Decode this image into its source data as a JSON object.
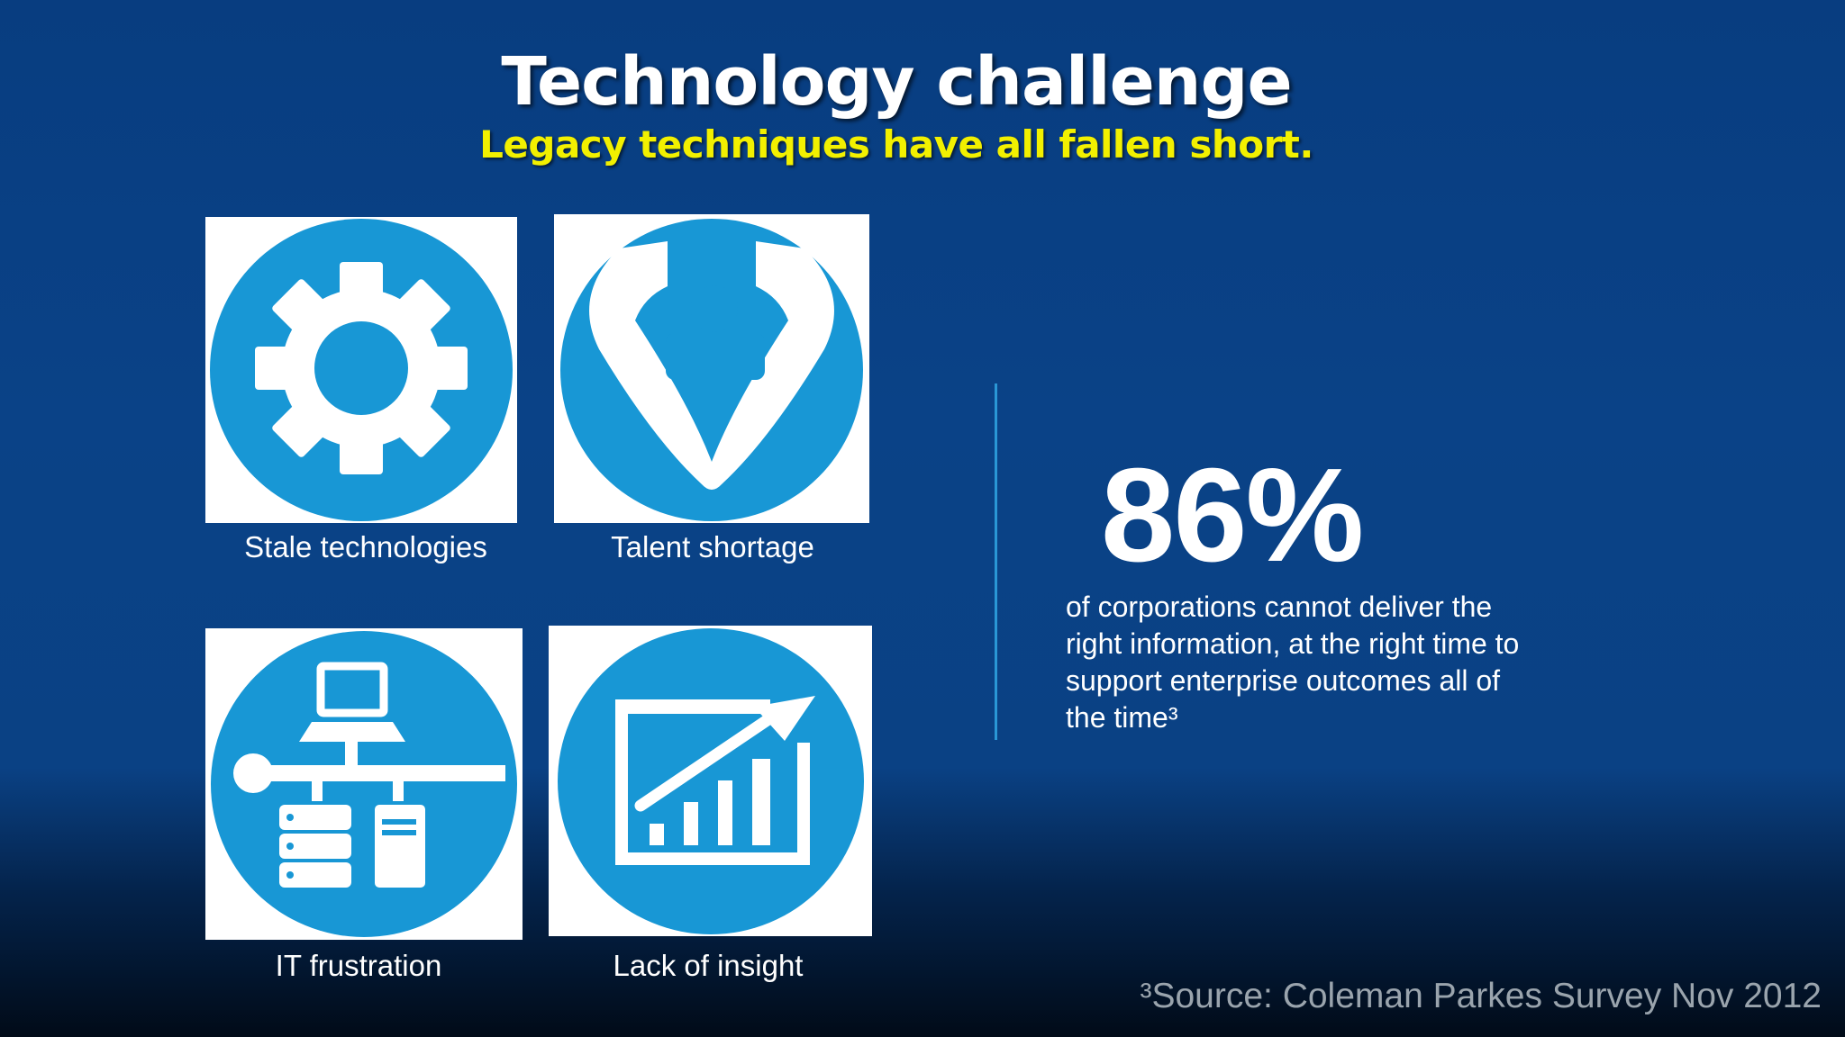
{
  "slide": {
    "title": "Technology challenge",
    "subtitle": "Legacy techniques have all fallen short."
  },
  "tiles": [
    {
      "icon": "gear-icon",
      "caption": "Stale technologies"
    },
    {
      "icon": "talent-funnel-icon",
      "caption": "Talent shortage"
    },
    {
      "icon": "network-computer-icon",
      "caption": "IT frustration"
    },
    {
      "icon": "growth-chart-icon",
      "caption": "Lack of insight"
    }
  ],
  "stat": {
    "value": "86%",
    "description": "of corporations cannot deliver the right information, at the right time to support enterprise outcomes all of the time³"
  },
  "source": "³Source: Coleman Parkes Survey Nov 2012",
  "colors": {
    "background": "#0a4287",
    "icon_blue": "#1897d5",
    "subtitle_yellow": "#f2f000",
    "divider": "#2a97d6"
  }
}
